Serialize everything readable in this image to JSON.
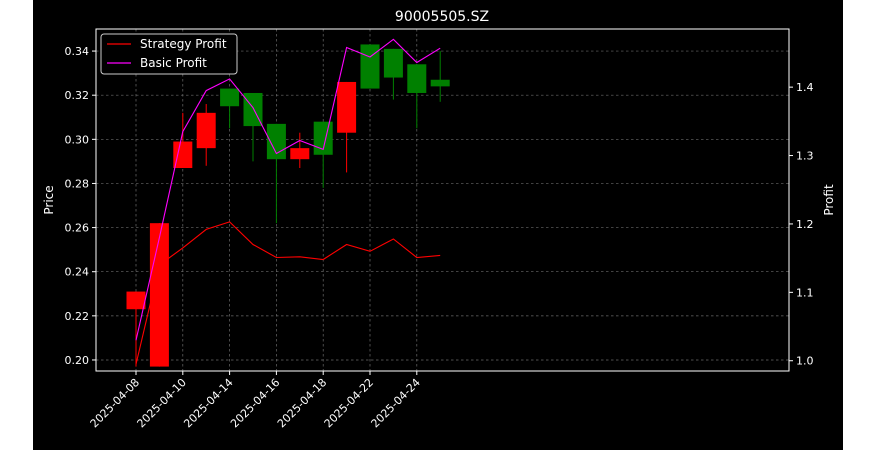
{
  "chart_data": {
    "type": "candlestick+line",
    "title": "90005505.SZ",
    "ylabel_left": "Price",
    "ylabel_right": "Profit",
    "ylim_left": [
      0.195,
      0.35
    ],
    "ylim_right": [
      0.985,
      1.485
    ],
    "yticks_left": [
      "0.20",
      "0.22",
      "0.24",
      "0.26",
      "0.28",
      "0.30",
      "0.32",
      "0.34"
    ],
    "yticks_right": [
      "1.0",
      "1.1",
      "1.2",
      "1.3",
      "1.4"
    ],
    "x_tick_labels": [
      "2025-04-08",
      "2025-04-10",
      "2025-04-14",
      "2025-04-16",
      "2025-04-18",
      "2025-04-22",
      "2025-04-24"
    ],
    "grid": true,
    "legend_position": "top-left",
    "colors": {
      "up": "#ff0000",
      "down": "#008000",
      "strategy": "#ff0000",
      "basic": "#ff00ff",
      "background": "#000000",
      "foreground": "#ffffff"
    },
    "dates": [
      "2025-04-08",
      "2025-04-09",
      "2025-04-10",
      "2025-04-11",
      "2025-04-14",
      "2025-04-15",
      "2025-04-16",
      "2025-04-17",
      "2025-04-18",
      "2025-04-21",
      "2025-04-22",
      "2025-04-23",
      "2025-04-24",
      "2025-04-25"
    ],
    "candles": [
      {
        "open": 0.223,
        "close": 0.231,
        "high": 0.231,
        "low": 0.197
      },
      {
        "open": 0.197,
        "close": 0.262,
        "high": 0.262,
        "low": 0.197
      },
      {
        "open": 0.287,
        "close": 0.299,
        "high": 0.312,
        "low": 0.287
      },
      {
        "open": 0.296,
        "close": 0.312,
        "high": 0.316,
        "low": 0.288
      },
      {
        "open": 0.323,
        "close": 0.315,
        "high": 0.323,
        "low": 0.305
      },
      {
        "open": 0.321,
        "close": 0.306,
        "high": 0.321,
        "low": 0.29
      },
      {
        "open": 0.307,
        "close": 0.291,
        "high": 0.307,
        "low": 0.262
      },
      {
        "open": 0.291,
        "close": 0.296,
        "high": 0.303,
        "low": 0.287
      },
      {
        "open": 0.308,
        "close": 0.293,
        "high": 0.308,
        "low": 0.278
      },
      {
        "open": 0.303,
        "close": 0.326,
        "high": 0.326,
        "low": 0.285
      },
      {
        "open": 0.343,
        "close": 0.323,
        "high": 0.343,
        "low": 0.323
      },
      {
        "open": 0.341,
        "close": 0.328,
        "high": 0.341,
        "low": 0.318
      },
      {
        "open": 0.334,
        "close": 0.321,
        "high": 0.334,
        "low": 0.305
      },
      {
        "open": 0.327,
        "close": 0.324,
        "high": 0.34,
        "low": 0.317
      }
    ],
    "series": [
      {
        "name": "Strategy Profit",
        "values": [
          0.995,
          1.14,
          1.165,
          1.192,
          1.203,
          1.17,
          1.151,
          1.152,
          1.148,
          1.17,
          1.16,
          1.178,
          1.151,
          1.154
        ]
      },
      {
        "name": "Basic Profit",
        "values": [
          1.03,
          1.18,
          1.335,
          1.395,
          1.412,
          1.37,
          1.303,
          1.322,
          1.309,
          1.458,
          1.444,
          1.47,
          1.436,
          1.457
        ]
      }
    ]
  }
}
